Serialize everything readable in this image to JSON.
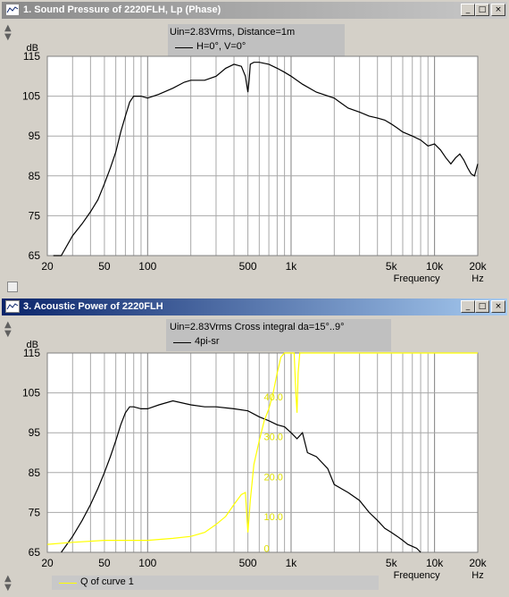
{
  "windows": [
    {
      "title": "1. Sound Pressure of 2220FLH, Lp (Phase)",
      "legend_header": "Uin=2.83Vrms, Distance=1m",
      "legend_entry": "H=0°, V=0°"
    },
    {
      "title": "3. Acoustic Power of 2220FLH",
      "legend_header": "Uin=2.83Vrms Cross integral da=15°..9°",
      "legend_entry": "4pi-sr",
      "bottom_legend": "Q of curve 1"
    }
  ],
  "buttons": {
    "minimize": "_",
    "restore": "□",
    "close": "×"
  },
  "scroll": {
    "up": "▲",
    "down": "▼"
  },
  "chart_data": [
    {
      "type": "line",
      "ylabel": "dB",
      "xlabel": "Frequency",
      "xunit": "Hz",
      "xscale": "log",
      "xlim": [
        20,
        20000
      ],
      "ylim": [
        65,
        115
      ],
      "xticks": [
        20,
        50,
        100,
        500,
        1000,
        5000,
        10000,
        20000
      ],
      "xtick_labels": [
        "20",
        "50",
        "100",
        "500",
        "1k",
        "5k",
        "10k",
        "20k"
      ],
      "yticks": [
        65,
        75,
        85,
        95,
        105,
        115
      ],
      "grid": true,
      "series": [
        {
          "name": "H=0°, V=0°",
          "color": "#000000",
          "x": [
            22,
            25,
            30,
            35,
            40,
            45,
            50,
            55,
            60,
            65,
            70,
            75,
            80,
            90,
            100,
            120,
            150,
            180,
            200,
            250,
            300,
            350,
            400,
            450,
            480,
            500,
            510,
            520,
            550,
            600,
            700,
            800,
            900,
            1000,
            1200,
            1500,
            2000,
            2500,
            3000,
            3500,
            4000,
            4500,
            5000,
            5500,
            6000,
            7000,
            8000,
            9000,
            10000,
            11000,
            12000,
            13000,
            14000,
            15000,
            16000,
            17000,
            18000,
            19000,
            20000
          ],
          "values": [
            65,
            65,
            70,
            73,
            76,
            79,
            83,
            87,
            91,
            96,
            100,
            103.5,
            105,
            105,
            104.5,
            105.5,
            107,
            108.5,
            109,
            109,
            110,
            112,
            113,
            112.5,
            110,
            106,
            109,
            113,
            113.5,
            113.5,
            113,
            112,
            111,
            110,
            108,
            106,
            104.5,
            102,
            101,
            100,
            99.5,
            99,
            98,
            97,
            96,
            95,
            94,
            92.5,
            93,
            91.5,
            89.5,
            88,
            89.5,
            90.5,
            89,
            87,
            85.5,
            85,
            88
          ]
        }
      ]
    },
    {
      "type": "line",
      "ylabel": "dB",
      "xlabel": "Frequency",
      "xunit": "Hz",
      "xscale": "log",
      "xlim": [
        20,
        20000
      ],
      "ylim": [
        65,
        115
      ],
      "xticks": [
        20,
        50,
        100,
        500,
        1000,
        5000,
        10000,
        20000
      ],
      "xtick_labels": [
        "20",
        "50",
        "100",
        "500",
        "1k",
        "5k",
        "10k",
        "20k"
      ],
      "yticks": [
        65,
        75,
        85,
        95,
        105,
        115
      ],
      "grid": true,
      "q_scale_labels": [
        "0",
        "10.0",
        "20.0",
        "30.0",
        "40.0"
      ],
      "series": [
        {
          "name": "4pi-sr",
          "color": "#000000",
          "x": [
            25,
            30,
            35,
            40,
            45,
            50,
            55,
            60,
            65,
            70,
            75,
            80,
            90,
            100,
            120,
            150,
            200,
            250,
            300,
            400,
            500,
            600,
            700,
            800,
            900,
            1000,
            1100,
            1200,
            1300,
            1500,
            1800,
            2000,
            2500,
            3000,
            3500,
            4000,
            4500,
            5000,
            5500,
            6000,
            6500,
            7000,
            7500,
            8000
          ],
          "values": [
            65,
            69,
            73,
            77,
            81,
            85,
            89,
            93,
            97,
            100,
            101.5,
            101.5,
            101,
            101,
            102,
            103,
            102,
            101.5,
            101.5,
            101,
            100.5,
            99,
            98,
            97,
            96.5,
            95,
            93.5,
            95,
            90,
            89,
            86,
            82,
            80,
            78,
            75,
            73,
            71,
            70,
            69,
            68,
            67,
            66.5,
            66,
            65
          ]
        },
        {
          "name": "Q of curve 1",
          "color": "#ffff00",
          "x": [
            20,
            30,
            50,
            100,
            150,
            200,
            250,
            300,
            350,
            400,
            450,
            480,
            500,
            520,
            550,
            600,
            650,
            700,
            750,
            800,
            850,
            900,
            950,
            1000,
            1050,
            1080,
            1100,
            1120,
            1150,
            1200,
            1500,
            2000,
            5000,
            10000,
            20000
          ],
          "values": [
            67,
            67.5,
            68,
            68,
            68.5,
            69,
            70,
            72,
            74,
            77,
            79.5,
            80,
            70,
            78,
            87,
            93,
            98,
            101,
            105,
            110,
            114,
            115,
            115,
            115,
            115,
            105,
            100,
            110,
            115,
            115,
            115,
            115,
            115,
            115,
            115
          ]
        }
      ]
    }
  ]
}
